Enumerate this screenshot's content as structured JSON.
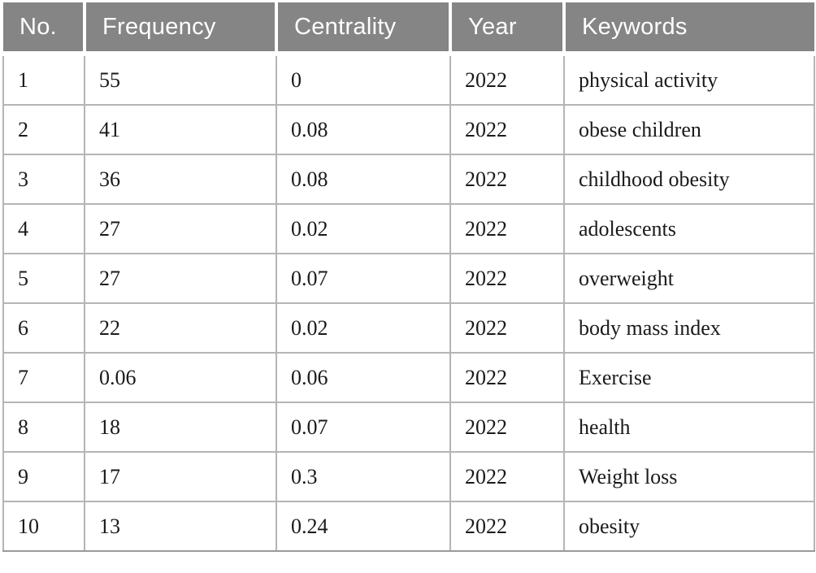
{
  "table": {
    "columns": [
      {
        "key": "no",
        "label": "No."
      },
      {
        "key": "frequency",
        "label": "Frequency"
      },
      {
        "key": "centrality",
        "label": "Centrality"
      },
      {
        "key": "year",
        "label": "Year"
      },
      {
        "key": "keywords",
        "label": "Keywords"
      }
    ],
    "rows": [
      [
        "1",
        "55",
        "0",
        "2022",
        "physical activity"
      ],
      [
        "2",
        "41",
        "0.08",
        "2022",
        "obese children"
      ],
      [
        "3",
        "36",
        "0.08",
        "2022",
        "childhood obesity"
      ],
      [
        "4",
        "27",
        "0.02",
        "2022",
        "adolescents"
      ],
      [
        "5",
        "27",
        "0.07",
        "2022",
        "overweight"
      ],
      [
        "6",
        "22",
        "0.02",
        "2022",
        "body mass index"
      ],
      [
        "7",
        "0.06",
        "0.06",
        "2022",
        "Exercise"
      ],
      [
        "8",
        "18",
        "0.07",
        "2022",
        "health"
      ],
      [
        "9",
        "17",
        "0.3",
        "2022",
        "Weight loss"
      ],
      [
        "10",
        "13",
        "0.24",
        "2022",
        "obesity"
      ]
    ]
  },
  "chart_data": {
    "type": "table",
    "columns": [
      "No.",
      "Frequency",
      "Centrality",
      "Year",
      "Keywords"
    ],
    "rows": [
      [
        "1",
        "55",
        "0",
        "2022",
        "physical activity"
      ],
      [
        "2",
        "41",
        "0.08",
        "2022",
        "obese children"
      ],
      [
        "3",
        "36",
        "0.08",
        "2022",
        "childhood obesity"
      ],
      [
        "4",
        "27",
        "0.02",
        "2022",
        "adolescents"
      ],
      [
        "5",
        "27",
        "0.07",
        "2022",
        "overweight"
      ],
      [
        "6",
        "22",
        "0.02",
        "2022",
        "body mass index"
      ],
      [
        "7",
        "0.06",
        "0.06",
        "2022",
        "Exercise"
      ],
      [
        "8",
        "18",
        "0.07",
        "2022",
        "health"
      ],
      [
        "9",
        "17",
        "0.3",
        "2022",
        "Weight loss"
      ],
      [
        "10",
        "13",
        "0.24",
        "2022",
        "obesity"
      ]
    ]
  },
  "colors": {
    "header_background": "#858585",
    "header_text": "#ffffff",
    "body_text": "#1a1a1a",
    "grid_line": "#b5b5b5",
    "outer_bottom_border": "#9a9a9a",
    "page_background": "#ffffff"
  }
}
